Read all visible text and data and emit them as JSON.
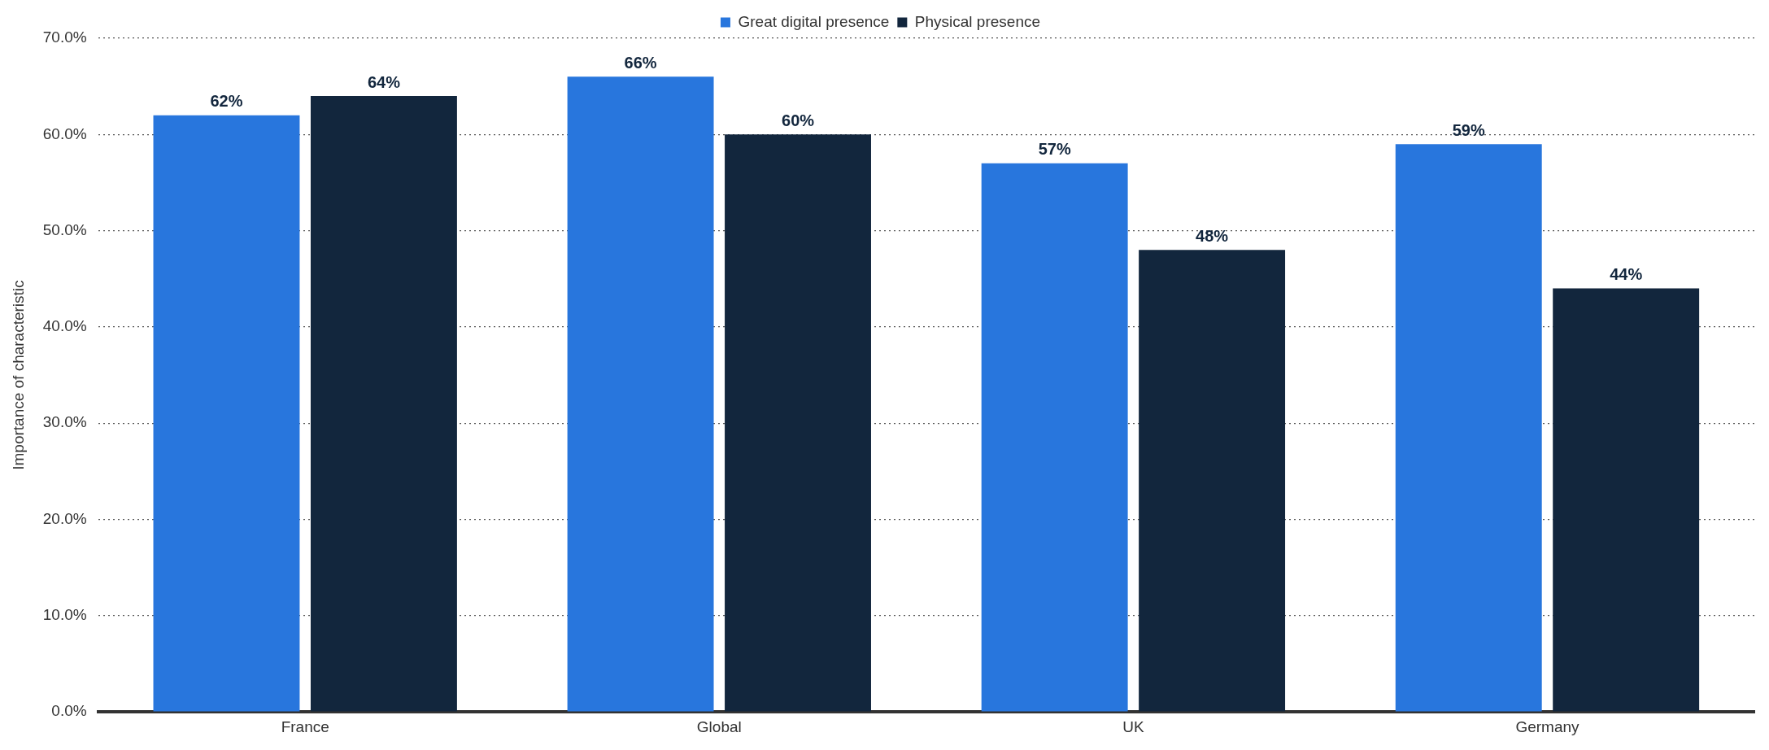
{
  "chart_data": {
    "type": "bar",
    "ylabel": "Importance of characteristic",
    "categories": [
      "France",
      "Global",
      "UK",
      "Germany"
    ],
    "series": [
      {
        "name": "Great digital presence",
        "color": "#2876dd",
        "values": [
          62,
          66,
          57,
          59
        ],
        "value_labels": [
          "62%",
          "66%",
          "57%",
          "59%"
        ]
      },
      {
        "name": "Physical presence",
        "color": "#12263d",
        "values": [
          64,
          60,
          48,
          44
        ],
        "value_labels": [
          "64%",
          "60%",
          "48%",
          "44%"
        ]
      }
    ],
    "ylim": [
      0,
      70
    ],
    "yticks": [
      {
        "value": 0,
        "label": "0.0%"
      },
      {
        "value": 10,
        "label": "10.0%"
      },
      {
        "value": 20,
        "label": "20.0%"
      },
      {
        "value": 30,
        "label": "30.0%"
      },
      {
        "value": 40,
        "label": "40.0%"
      },
      {
        "value": 50,
        "label": "50.0%"
      },
      {
        "value": 60,
        "label": "60.0%"
      },
      {
        "value": 70,
        "label": "70.0%"
      }
    ],
    "grid": "y",
    "legend": "top"
  }
}
